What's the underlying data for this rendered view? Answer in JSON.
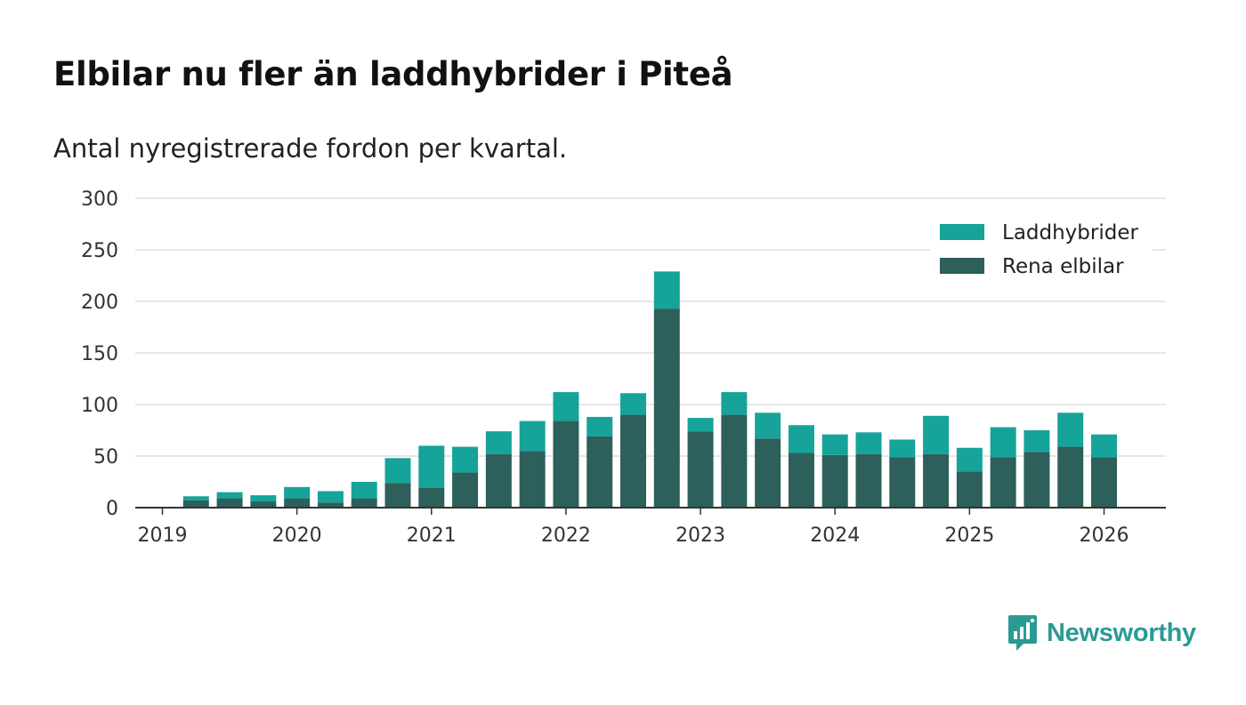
{
  "title": "Elbilar nu fler än laddhybrider i Piteå",
  "subtitle": "Antal nyregistrerade fordon per kvartal.",
  "brand": {
    "name": "Newsworthy",
    "icon": "newsworthy-logo-icon",
    "color": "#2a9a93"
  },
  "colors": {
    "rena_elbilar": "#2d5f5b",
    "laddhybrider": "#16a39a",
    "grid": "#dddddd",
    "axis": "#333333"
  },
  "chart_data": {
    "type": "bar",
    "stacked": true,
    "title": "Elbilar nu fler än laddhybrider i Piteå",
    "subtitle": "Antal nyregistrerade fordon per kvartal.",
    "xlabel": "",
    "ylabel": "",
    "ylim": [
      0,
      300
    ],
    "yticks": [
      0,
      50,
      100,
      150,
      200,
      250,
      300
    ],
    "xticks": [
      "2019",
      "2020",
      "2021",
      "2022",
      "2023",
      "2024",
      "2025",
      "2026"
    ],
    "grid": true,
    "legend_position": "top-right",
    "categories": [
      "2019 Q1",
      "2019 Q2",
      "2019 Q3",
      "2019 Q4",
      "2020 Q1",
      "2020 Q2",
      "2020 Q3",
      "2020 Q4",
      "2021 Q1",
      "2021 Q2",
      "2021 Q3",
      "2021 Q4",
      "2022 Q1",
      "2022 Q2",
      "2022 Q3",
      "2022 Q4",
      "2023 Q1",
      "2023 Q2",
      "2023 Q3",
      "2023 Q4",
      "2024 Q1",
      "2024 Q2",
      "2024 Q3",
      "2024 Q4",
      "2025 Q1",
      "2025 Q2",
      "2025 Q3",
      "2025 Q4",
      "2026 Q1"
    ],
    "series": [
      {
        "name": "Rena elbilar",
        "key": "rena_elbilar",
        "values": [
          0,
          7,
          9,
          6,
          9,
          5,
          9,
          24,
          19,
          34,
          52,
          55,
          84,
          69,
          90,
          193,
          74,
          90,
          67,
          53,
          51,
          52,
          49,
          52,
          35,
          49,
          54,
          59,
          49
        ]
      },
      {
        "name": "Laddhybrider",
        "key": "laddhybrider",
        "values": [
          0,
          4,
          6,
          6,
          11,
          11,
          16,
          24,
          41,
          25,
          22,
          29,
          28,
          19,
          21,
          36,
          13,
          22,
          25,
          27,
          20,
          21,
          17,
          37,
          23,
          29,
          21,
          33,
          22
        ]
      }
    ],
    "legend": [
      "Laddhybrider",
      "Rena elbilar"
    ]
  }
}
